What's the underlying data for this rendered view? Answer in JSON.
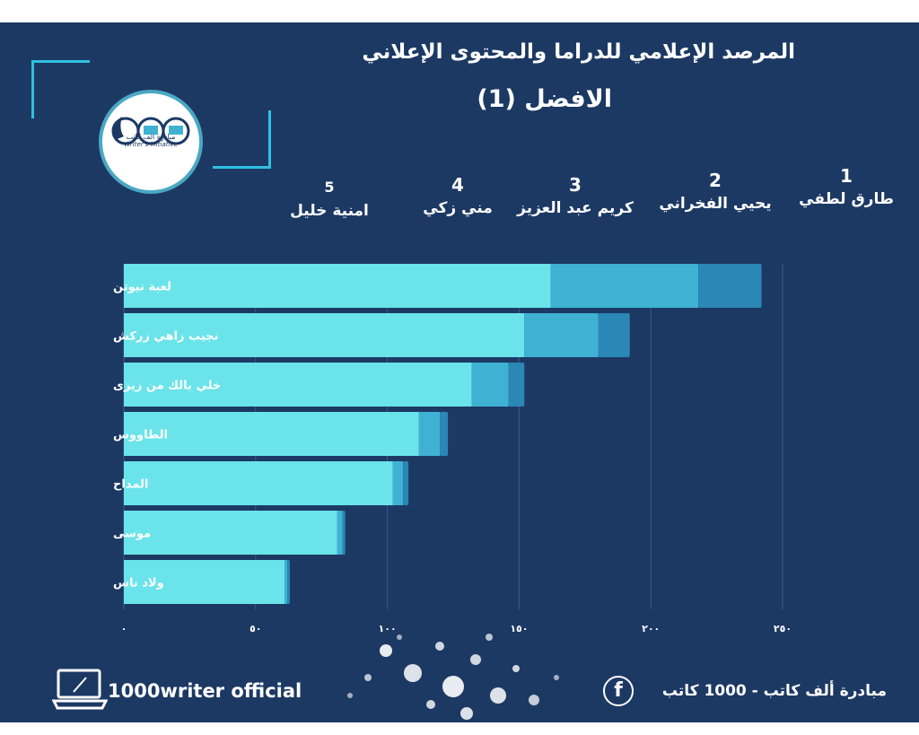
{
  "header": {
    "title": "المرصد الإعلامي للدراما والمحتوى الإعلاني",
    "subtitle": "الافضل (1)"
  },
  "logo": {
    "arabic_text": "مبادرة ألف كاتب",
    "english_text": "Writer's initiative"
  },
  "rankings": [
    {
      "rank": "1",
      "name": "طارق لطفي"
    },
    {
      "rank": "2",
      "name": "يحيي الفخراني"
    },
    {
      "rank": "3",
      "name": "كريم عبد العزيز"
    },
    {
      "rank": "4",
      "name": "مني زكي"
    },
    {
      "rank": "5",
      "name": "امنية خليل"
    }
  ],
  "chart_data": {
    "type": "bar",
    "orientation": "horizontal",
    "stacked": true,
    "categories": [
      "لعبة نيوتن",
      "نجيب زاهي زركش",
      "خلي بالك من زيزى",
      "الطاووس",
      "المداح",
      "موسى",
      "ولاد ناس"
    ],
    "series": [
      {
        "values": [
          162,
          152,
          132,
          112,
          102,
          81,
          61
        ],
        "color": "#6ae4ea"
      },
      {
        "values": [
          56,
          28,
          14,
          8,
          4,
          2,
          1
        ],
        "color": "#3fb2d4"
      },
      {
        "values": [
          24,
          12,
          6,
          3,
          2,
          1,
          1
        ],
        "color": "#2b87b5"
      }
    ],
    "xtick_labels": [
      "٠",
      "٥٠",
      "١٠٠",
      "١٥٠",
      "٢٠٠",
      "٢٥٠"
    ],
    "xtick_values": [
      0,
      50,
      100,
      150,
      200,
      250
    ],
    "xlim": [
      0,
      250
    ],
    "grid": true
  },
  "footer": {
    "left_text": "1000writer official",
    "right_text": "مبادرة ألف كاتب - 1000 كاتب",
    "facebook_letter": "f"
  },
  "colors": {
    "background": "#1c3964",
    "accent": "#2fc0e0"
  }
}
